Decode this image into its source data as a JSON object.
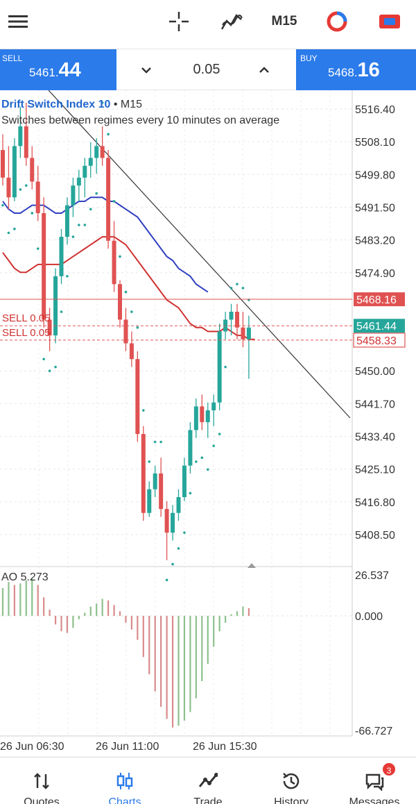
{
  "toolbar": {
    "menu_icon": "hamburger-menu-icon",
    "crosshair_icon": "crosshair-icon",
    "indicators_icon": "indicators-icon",
    "timeframe": "M15",
    "objects_icon": "objects-icon",
    "trade_icon": "trade-icon"
  },
  "trade": {
    "sell_label": "SELL",
    "sell_price_small": "5461.",
    "sell_price_big": "44",
    "buy_label": "BUY",
    "buy_price_small": "5468.",
    "buy_price_big": "16",
    "lot": "0.05"
  },
  "chart": {
    "symbol": "Drift Switch Index 10",
    "timeframe": "M15",
    "description": "Switches between regimes every 10 minutes on average",
    "price_ticks": [
      "5516.40",
      "5508.10",
      "5499.80",
      "5491.50",
      "5483.20",
      "5474.90",
      "5450.00",
      "5441.70",
      "5433.40",
      "5425.10",
      "5416.80",
      "5408.50"
    ],
    "ask_price": "5468.16",
    "bid_price": "5461.44",
    "order_price": "5458.33",
    "order_labels": [
      "SELL 0.05",
      "SELL 0.05"
    ],
    "ao_label": "AO 5.273",
    "ao_ticks": [
      "26.537",
      "0.000",
      "-66.727"
    ],
    "time_ticks": [
      "26 Jun 06:30",
      "26 Jun 11:00",
      "26 Jun 15:30"
    ],
    "colors": {
      "bull": "#26a69a",
      "bear": "#e05252",
      "ma_fast": "#3040c0",
      "ma_slow": "#d03030",
      "sar": "#26a69a",
      "trendline": "#333333"
    }
  },
  "chart_data": {
    "type": "candlestick",
    "title": "Drift Switch Index 10 · M15",
    "subtitle": "Switches between regimes every 10 minutes on average",
    "ylim": [
      5404,
      5521
    ],
    "x_ticks": [
      "26 Jun 06:30",
      "26 Jun 11:00",
      "26 Jun 15:30"
    ],
    "candles": [
      [
        5506,
        5510,
        5497,
        5499
      ],
      [
        5499,
        5507,
        5491,
        5494
      ],
      [
        5494,
        5509,
        5493,
        5507
      ],
      [
        5507,
        5517,
        5504,
        5512
      ],
      [
        5512,
        5518,
        5502,
        5504
      ],
      [
        5504,
        5507,
        5496,
        5498
      ],
      [
        5498,
        5502,
        5488,
        5490
      ],
      [
        5490,
        5494,
        5461,
        5463
      ],
      [
        5463,
        5466,
        5455,
        5459
      ],
      [
        5459,
        5476,
        5457,
        5474
      ],
      [
        5474,
        5486,
        5472,
        5484
      ],
      [
        5484,
        5494,
        5482,
        5492
      ],
      [
        5492,
        5499,
        5489,
        5497
      ],
      [
        5497,
        5501,
        5493,
        5499
      ],
      [
        5499,
        5504,
        5494,
        5502
      ],
      [
        5502,
        5508,
        5499,
        5504
      ],
      [
        5504,
        5509,
        5500,
        5507
      ],
      [
        5507,
        5512,
        5502,
        5504
      ],
      [
        5504,
        5506,
        5481,
        5483
      ],
      [
        5483,
        5488,
        5470,
        5472
      ],
      [
        5472,
        5473,
        5461,
        5463
      ],
      [
        5463,
        5466,
        5455,
        5457
      ],
      [
        5457,
        5460,
        5451,
        5453
      ],
      [
        5453,
        5455,
        5432,
        5434
      ],
      [
        5434,
        5436,
        5412,
        5414
      ],
      [
        5414,
        5422,
        5413,
        5420
      ],
      [
        5420,
        5426,
        5418,
        5424
      ],
      [
        5424,
        5428,
        5413,
        5415
      ],
      [
        5415,
        5417,
        5402,
        5409
      ],
      [
        5409,
        5416,
        5407,
        5414
      ],
      [
        5414,
        5420,
        5412,
        5418
      ],
      [
        5418,
        5428,
        5417,
        5426
      ],
      [
        5426,
        5437,
        5424,
        5435
      ],
      [
        5435,
        5443,
        5433,
        5441
      ],
      [
        5441,
        5444,
        5435,
        5437
      ],
      [
        5437,
        5442,
        5433,
        5440
      ],
      [
        5440,
        5444,
        5436,
        5442
      ],
      [
        5442,
        5462,
        5440,
        5460
      ],
      [
        5460,
        5465,
        5458,
        5463
      ],
      [
        5463,
        5467,
        5459,
        5465
      ],
      [
        5465,
        5467,
        5458,
        5461
      ],
      [
        5461,
        5465,
        5456,
        5458
      ],
      [
        5458,
        5464,
        5448,
        5461
      ]
    ],
    "ma_fast": [
      5493,
      5491,
      5490,
      5490,
      5491,
      5492,
      5492,
      5492,
      5491,
      5490,
      5490,
      5491,
      5492,
      5493,
      5493,
      5494,
      5494,
      5494,
      5493,
      5493,
      5492,
      5491,
      5490,
      5489,
      5487,
      5485,
      5483,
      5481,
      5479,
      5478,
      5476,
      5475,
      5474,
      5472,
      5471,
      5470
    ],
    "ma_slow": [
      5480,
      5478,
      5476,
      5475,
      5475,
      5476,
      5477,
      5477,
      5477,
      5477,
      5477,
      5478,
      5479,
      5480,
      5481,
      5482,
      5483,
      5484,
      5484,
      5484,
      5483,
      5482,
      5480,
      5478,
      5476,
      5474,
      5472,
      5470,
      5468,
      5467,
      5466,
      5464,
      5462,
      5461,
      5461,
      5460,
      5460,
      5460,
      5461,
      5460,
      5459,
      5459,
      5458,
      5458
    ],
    "ao": [
      18,
      22,
      20,
      21,
      23,
      24,
      20,
      12,
      4,
      -5,
      -9,
      -10,
      -7,
      -2,
      2,
      6,
      8,
      11,
      10,
      7,
      3,
      -4,
      -8,
      -14,
      -24,
      -34,
      -44,
      -53,
      -60,
      -65,
      -64,
      -61,
      -56,
      -48,
      -38,
      -28,
      -18,
      -9,
      -4,
      1,
      3,
      6,
      5
    ],
    "ao_ylim": [
      -66.727,
      26.537
    ],
    "sell_order_price": 5458.33,
    "ask": 5468.16,
    "bid": 5461.44
  },
  "nav": [
    {
      "label": "Quotes",
      "icon": "quotes-icon"
    },
    {
      "label": "Charts",
      "icon": "charts-icon"
    },
    {
      "label": "Trade",
      "icon": "trade-icon"
    },
    {
      "label": "History",
      "icon": "history-icon"
    },
    {
      "label": "Messages",
      "icon": "messages-icon",
      "badge": "3"
    }
  ]
}
